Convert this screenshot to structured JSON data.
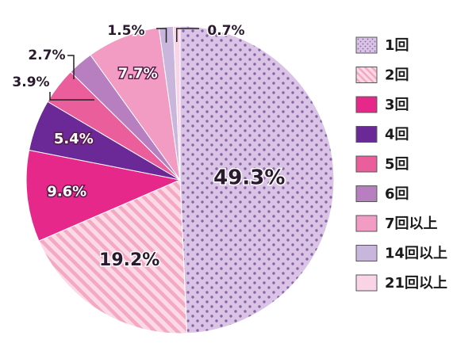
{
  "chart_data": {
    "type": "pie",
    "title": "",
    "slices": [
      {
        "label": "1回",
        "value": 49.3,
        "display": "49.3%",
        "color": "#d9c4e6",
        "pattern": "dots"
      },
      {
        "label": "2回",
        "value": 19.2,
        "display": "19.2%",
        "color": "#f9c7d8",
        "pattern": "stripes"
      },
      {
        "label": "3回",
        "value": 9.6,
        "display": "9.6%",
        "color": "#e6288a",
        "pattern": "solid"
      },
      {
        "label": "4回",
        "value": 5.4,
        "display": "5.4%",
        "color": "#6a2996",
        "pattern": "solid"
      },
      {
        "label": "5回",
        "value": 3.9,
        "display": "3.9%",
        "color": "#e95e9b",
        "pattern": "solid"
      },
      {
        "label": "6回",
        "value": 2.7,
        "display": "2.7%",
        "color": "#b77fc0",
        "pattern": "solid"
      },
      {
        "label": "7回以上",
        "value": 7.7,
        "display": "7.7%",
        "color": "#f29cc4",
        "pattern": "solid"
      },
      {
        "label": "14回以上",
        "value": 1.5,
        "display": "1.5%",
        "color": "#c9b6dc",
        "pattern": "solid"
      },
      {
        "label": "21回以上",
        "value": 0.7,
        "display": "0.7%",
        "color": "#f8d4e6",
        "pattern": "solid"
      }
    ],
    "legend_position": "right"
  }
}
